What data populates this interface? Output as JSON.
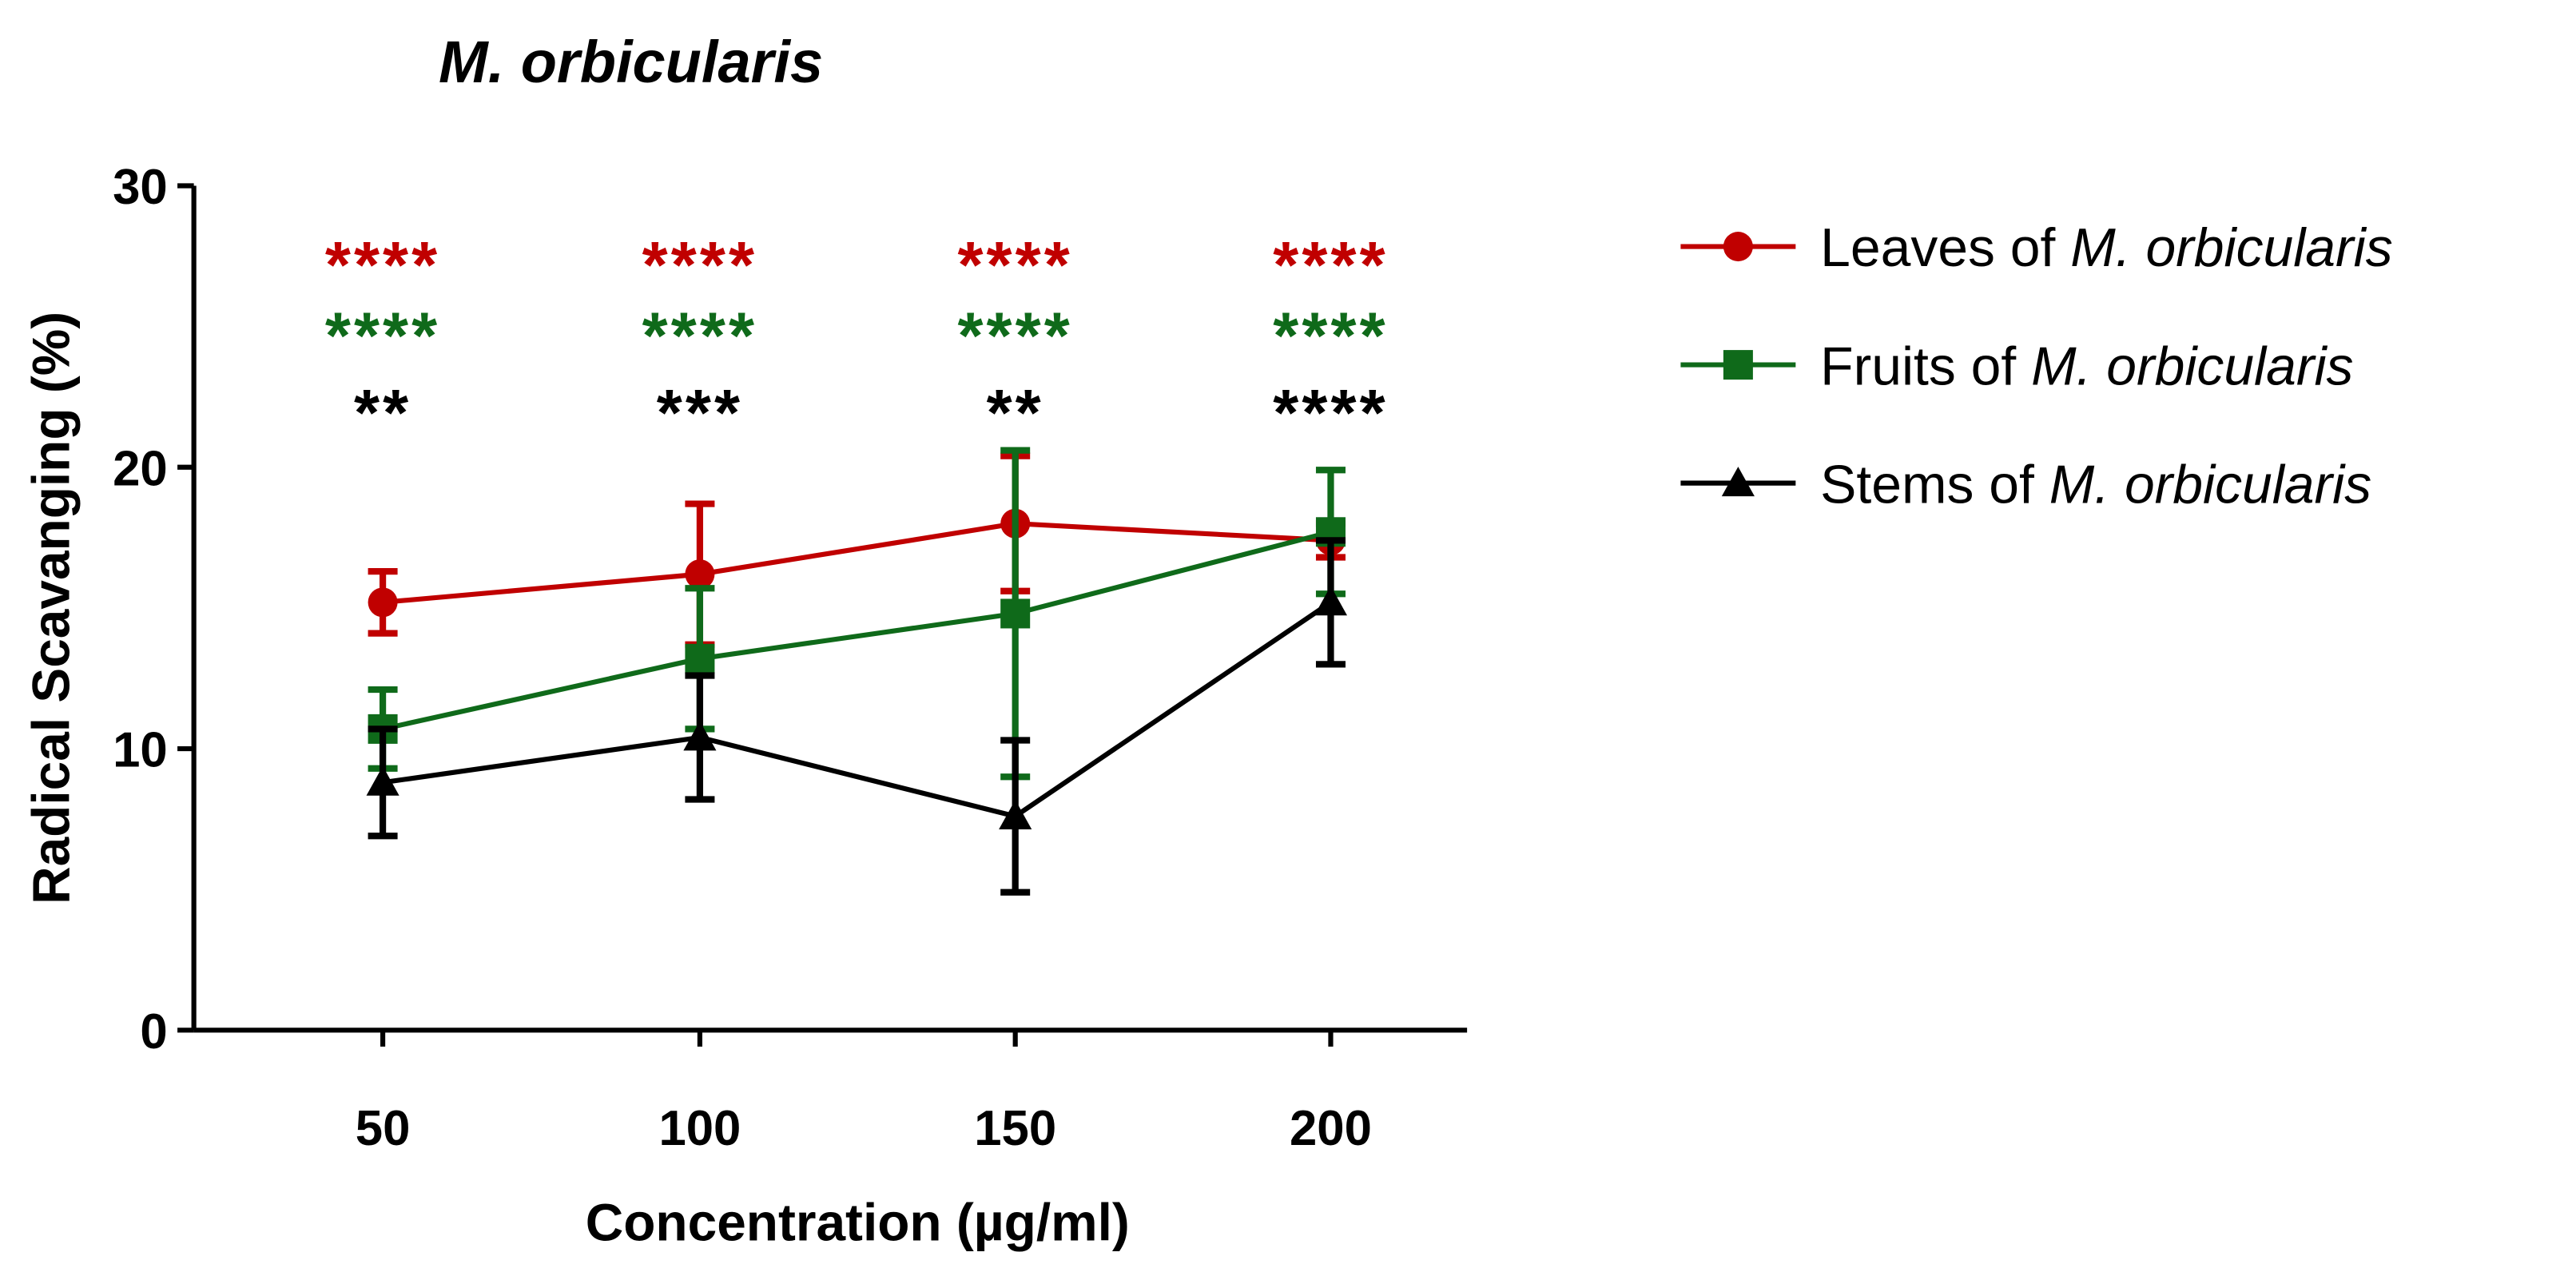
{
  "chart_data": {
    "type": "line",
    "title": "M. orbicularis",
    "xlabel": "Concentration (µg/ml)",
    "ylabel": "Radical Scavanging (%)",
    "categories": [
      "50",
      "100",
      "150",
      "200"
    ],
    "ylim": [
      0,
      30
    ],
    "yticks": [
      "0",
      "10",
      "20",
      "30"
    ],
    "grid": false,
    "legend_position": "right",
    "series": [
      {
        "name_prefix": "Leaves of ",
        "name_italic": "M. orbicularis",
        "color": "#c00000",
        "marker": "circle",
        "values": [
          15.2,
          16.2,
          18.0,
          17.4
        ],
        "error": [
          1.1,
          2.5,
          2.4,
          0.6
        ]
      },
      {
        "name_prefix": "Fruits of ",
        "name_italic": "M. orbicularis",
        "color": "#0f6a1a",
        "marker": "square",
        "values": [
          10.7,
          13.2,
          14.8,
          17.7
        ],
        "error": [
          1.4,
          2.5,
          5.8,
          2.2
        ]
      },
      {
        "name_prefix": "Stems of ",
        "name_italic": "M. orbicularis",
        "color": "#000000",
        "marker": "triangle",
        "values": [
          8.8,
          10.4,
          7.6,
          15.2
        ],
        "error": [
          1.9,
          2.2,
          2.7,
          2.2
        ]
      }
    ],
    "annotations": [
      [
        "****",
        "****",
        "****",
        "****"
      ],
      [
        "****",
        "****",
        "****",
        "****"
      ],
      [
        "**",
        "***",
        "**",
        "****"
      ]
    ]
  }
}
